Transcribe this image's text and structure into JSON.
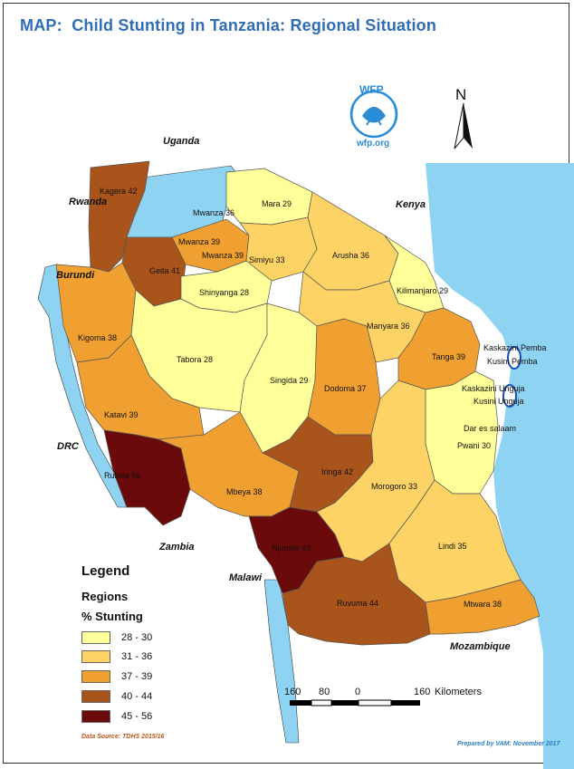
{
  "title": "MAP:  Child Stunting in Tanzania: Regional Situation",
  "logo": {
    "text": "WFP",
    "url": "wfp.org",
    "color": "#2a8bd6"
  },
  "north_label": "N",
  "countries": [
    "Uganda",
    "Kenya",
    "Rwanda",
    "Burundi",
    "DRC",
    "Zambia",
    "Malawi",
    "Mozambique"
  ],
  "regions": [
    {
      "label": "Kagera 42",
      "class": "40-44"
    },
    {
      "label": "Mwanza 36",
      "class": "31-36"
    },
    {
      "label": "Mara 29",
      "class": "28-30"
    },
    {
      "label": "Mwanza 39",
      "class": "37-39"
    },
    {
      "label": "Mwanza 39",
      "class": "37-39"
    },
    {
      "label": "Geita 41",
      "class": "40-44"
    },
    {
      "label": "Simiyu 33",
      "class": "31-36"
    },
    {
      "label": "Arusha 36",
      "class": "31-36"
    },
    {
      "label": "Shinyanga 28",
      "class": "28-30"
    },
    {
      "label": "Kilimanjaro 29",
      "class": "28-30"
    },
    {
      "label": "Manyara 36",
      "class": "31-36"
    },
    {
      "label": "Kigoma 38",
      "class": "37-39"
    },
    {
      "label": "Tabora 28",
      "class": "28-30"
    },
    {
      "label": "Singida 29",
      "class": "28-30"
    },
    {
      "label": "Dodoma 37",
      "class": "37-39"
    },
    {
      "label": "Tanga 39",
      "class": "37-39"
    },
    {
      "label": "Kaskazini Pemba",
      "class": "none"
    },
    {
      "label": "Kusini Pemba",
      "class": "none"
    },
    {
      "label": "Kaskazini Unguja",
      "class": "none"
    },
    {
      "label": "Kusini Unguja",
      "class": "none"
    },
    {
      "label": "Dar es salaam",
      "class": "28-30"
    },
    {
      "label": "Pwani 30",
      "class": "28-30"
    },
    {
      "label": "Katavi 39",
      "class": "37-39"
    },
    {
      "label": "Rukwa 56",
      "class": "45-56"
    },
    {
      "label": "Mbeya 38",
      "class": "37-39"
    },
    {
      "label": "Iringa 42",
      "class": "40-44"
    },
    {
      "label": "Morogoro 33",
      "class": "31-36"
    },
    {
      "label": "Njombe 49",
      "class": "45-56"
    },
    {
      "label": "Lindi 35",
      "class": "31-36"
    },
    {
      "label": "Ruvuma 44",
      "class": "40-44"
    },
    {
      "label": "Mtwara 38",
      "class": "37-39"
    }
  ],
  "legend": {
    "title": "Legend",
    "subtitle": "Regions",
    "subtitle2": "% Stunting",
    "classes": [
      {
        "label": "28 - 30",
        "color": "#ffff99"
      },
      {
        "label": "31 - 36",
        "color": "#fdd366"
      },
      {
        "label": "37 - 39",
        "color": "#f0a030"
      },
      {
        "label": "40 - 44",
        "color": "#a8541a"
      },
      {
        "label": "45 - 56",
        "color": "#6b0a0a"
      }
    ]
  },
  "water_color": "#8fd3f2",
  "scale": {
    "labels": [
      "160",
      "80",
      "0",
      "160"
    ],
    "unit": "Kilometers"
  },
  "source": "Data Source: TDHS 2015/16",
  "prepared_by": "Prepared by VAM: November 2017"
}
